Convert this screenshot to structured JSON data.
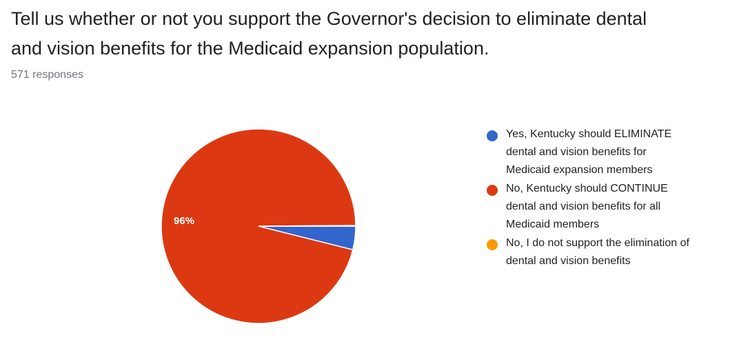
{
  "title": "Tell us whether or not you support the Governor's decision to eliminate dental\nand vision benefits for the Medicaid expansion population.",
  "responses": "571 responses",
  "chart_data": {
    "type": "pie",
    "series": [
      {
        "label": "Yes, Kentucky should ELIMINATE dental and vision benefits for Medicaid expansion members",
        "label_lines": [
          "Yes, Kentucky should ELIMINATE",
          "dental and vision benefits for",
          "Medicaid expansion members"
        ],
        "value": 3.9,
        "color": "#3366cc"
      },
      {
        "label": "No, Kentucky should CONTINUE dental and vision benefits for all Medicaid members",
        "label_lines": [
          "No, Kentucky should CONTINUE",
          "dental and vision benefits for all",
          "Medicaid members"
        ],
        "value": 96,
        "color": "#dc3912"
      },
      {
        "label": "No, I do not support the elimination of dental and vision benefits",
        "label_lines": [
          "No, I do not support the elimination of",
          "dental and vision benefits"
        ],
        "value": 0.1,
        "color": "#ff9900"
      }
    ],
    "slice_labels": [
      "",
      "96%",
      ""
    ],
    "legend_position": "right"
  }
}
